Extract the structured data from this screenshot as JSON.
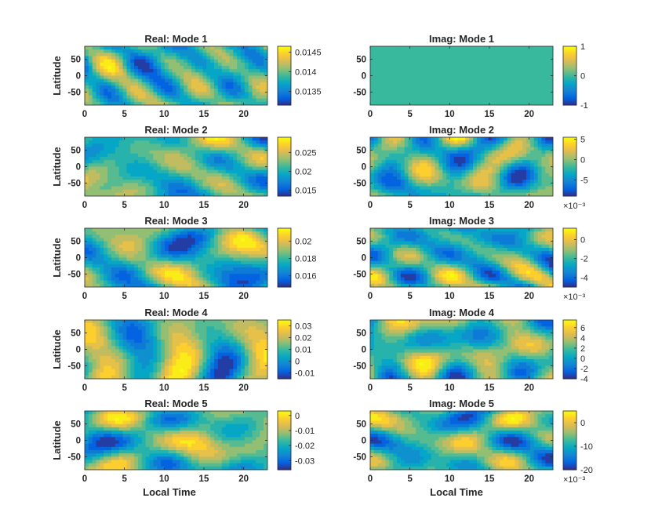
{
  "figure": {
    "xlabel": "Local Time",
    "ylabel": "Latitude"
  },
  "colors": {
    "parula": [
      "#352a87",
      "#0363e1",
      "#1485d4",
      "#06a7c6",
      "#38b99e",
      "#92bf73",
      "#d9ba56",
      "#fcce2e",
      "#f9fb0e"
    ]
  },
  "chart_data": [
    {
      "type": "contour",
      "title": "Real: Mode 1",
      "xlim": [
        0,
        23
      ],
      "ylim": [
        -90,
        90
      ],
      "xticks": [
        0,
        5,
        10,
        15,
        20
      ],
      "yticks": [
        50,
        0,
        -50
      ],
      "clim": [
        0.01315,
        0.01465
      ],
      "cbar_ticks": [
        {
          "v": 0.0145,
          "label": "0.0145"
        },
        {
          "v": 0.014,
          "label": "0.014"
        },
        {
          "v": 0.0135,
          "label": "0.0135"
        }
      ],
      "exponent": "",
      "seed": 1
    },
    {
      "type": "contour",
      "title": "Imag: Mode 1",
      "xlim": [
        0,
        23
      ],
      "ylim": [
        -90,
        90
      ],
      "xticks": [
        0,
        5,
        10,
        15,
        20
      ],
      "yticks": [
        50,
        0,
        -50
      ],
      "clim": [
        -1,
        1
      ],
      "cbar_ticks": [
        {
          "v": 1,
          "label": "1"
        },
        {
          "v": 0,
          "label": "0"
        },
        {
          "v": -1,
          "label": "-1"
        }
      ],
      "exponent": "",
      "constant": 0
    },
    {
      "type": "contour",
      "title": "Real: Mode 2",
      "xlim": [
        0,
        23
      ],
      "ylim": [
        -90,
        90
      ],
      "xticks": [
        0,
        5,
        10,
        15,
        20
      ],
      "yticks": [
        50,
        0,
        -50
      ],
      "clim": [
        0.0135,
        0.029
      ],
      "cbar_ticks": [
        {
          "v": 0.025,
          "label": "0.025"
        },
        {
          "v": 0.02,
          "label": "0.02"
        },
        {
          "v": 0.015,
          "label": "0.015"
        }
      ],
      "exponent": "",
      "seed": 2
    },
    {
      "type": "contour",
      "title": "Imag: Mode 2",
      "xlim": [
        0,
        23
      ],
      "ylim": [
        -90,
        90
      ],
      "xticks": [
        0,
        5,
        10,
        15,
        20
      ],
      "yticks": [
        50,
        0,
        -50
      ],
      "clim": [
        -9,
        5.5
      ],
      "cbar_ticks": [
        {
          "v": 5,
          "label": "5"
        },
        {
          "v": 0,
          "label": "0"
        },
        {
          "v": -5,
          "label": "-5"
        }
      ],
      "exponent": "×10⁻³",
      "seed": 3
    },
    {
      "type": "contour",
      "title": "Real: Mode 3",
      "xlim": [
        0,
        23
      ],
      "ylim": [
        -90,
        90
      ],
      "xticks": [
        0,
        5,
        10,
        15,
        20
      ],
      "yticks": [
        50,
        0,
        -50
      ],
      "clim": [
        0.0147,
        0.0215
      ],
      "cbar_ticks": [
        {
          "v": 0.02,
          "label": "0.02"
        },
        {
          "v": 0.018,
          "label": "0.018"
        },
        {
          "v": 0.016,
          "label": "0.016"
        }
      ],
      "exponent": "",
      "seed": 4
    },
    {
      "type": "contour",
      "title": "Imag: Mode 3",
      "xlim": [
        0,
        23
      ],
      "ylim": [
        -90,
        90
      ],
      "xticks": [
        0,
        5,
        10,
        15,
        20
      ],
      "yticks": [
        50,
        0,
        -50
      ],
      "clim": [
        -5,
        1.2
      ],
      "cbar_ticks": [
        {
          "v": 0,
          "label": "0"
        },
        {
          "v": -2,
          "label": "-2"
        },
        {
          "v": -4,
          "label": "-4"
        }
      ],
      "exponent": "×10⁻³",
      "seed": 5
    },
    {
      "type": "contour",
      "title": "Real: Mode 4",
      "xlim": [
        0,
        23
      ],
      "ylim": [
        -90,
        90
      ],
      "xticks": [
        0,
        5,
        10,
        15,
        20
      ],
      "yticks": [
        50,
        0,
        -50
      ],
      "clim": [
        -0.015,
        0.035
      ],
      "cbar_ticks": [
        {
          "v": 0.03,
          "label": "0.03"
        },
        {
          "v": 0.02,
          "label": "0.02"
        },
        {
          "v": 0.01,
          "label": "0.01"
        },
        {
          "v": 0,
          "label": "0"
        },
        {
          "v": -0.01,
          "label": "-0.01"
        }
      ],
      "exponent": "",
      "seed": 6
    },
    {
      "type": "contour",
      "title": "Imag: Mode 4",
      "xlim": [
        0,
        23
      ],
      "ylim": [
        -90,
        90
      ],
      "xticks": [
        0,
        5,
        10,
        15,
        20
      ],
      "yticks": [
        50,
        0,
        -50
      ],
      "clim": [
        -4,
        7.5
      ],
      "cbar_ticks": [
        {
          "v": 6,
          "label": "6"
        },
        {
          "v": 4,
          "label": "4"
        },
        {
          "v": 2,
          "label": "2"
        },
        {
          "v": 0,
          "label": "0"
        },
        {
          "v": -2,
          "label": "-2"
        },
        {
          "v": -4,
          "label": "-4"
        }
      ],
      "exponent": "",
      "seed": 7
    },
    {
      "type": "contour",
      "title": "Real: Mode 5",
      "xlim": [
        0,
        23
      ],
      "ylim": [
        -90,
        90
      ],
      "xticks": [
        0,
        5,
        10,
        15,
        20
      ],
      "yticks": [
        50,
        0,
        -50
      ],
      "clim": [
        -0.036,
        0.003
      ],
      "cbar_ticks": [
        {
          "v": 0,
          "label": "0"
        },
        {
          "v": -0.01,
          "label": "-0.01"
        },
        {
          "v": -0.02,
          "label": "-0.02"
        },
        {
          "v": -0.03,
          "label": "-0.03"
        }
      ],
      "exponent": "",
      "seed": 8
    },
    {
      "type": "contour",
      "title": "Imag: Mode 5",
      "xlim": [
        0,
        23
      ],
      "ylim": [
        -90,
        90
      ],
      "xticks": [
        0,
        5,
        10,
        15,
        20
      ],
      "yticks": [
        50,
        0,
        -50
      ],
      "clim": [
        -20,
        5
      ],
      "cbar_ticks": [
        {
          "v": 0,
          "label": "0"
        },
        {
          "v": -10,
          "label": "-10"
        },
        {
          "v": -20,
          "label": "-20"
        }
      ],
      "exponent": "×10⁻³",
      "seed": 9
    }
  ]
}
